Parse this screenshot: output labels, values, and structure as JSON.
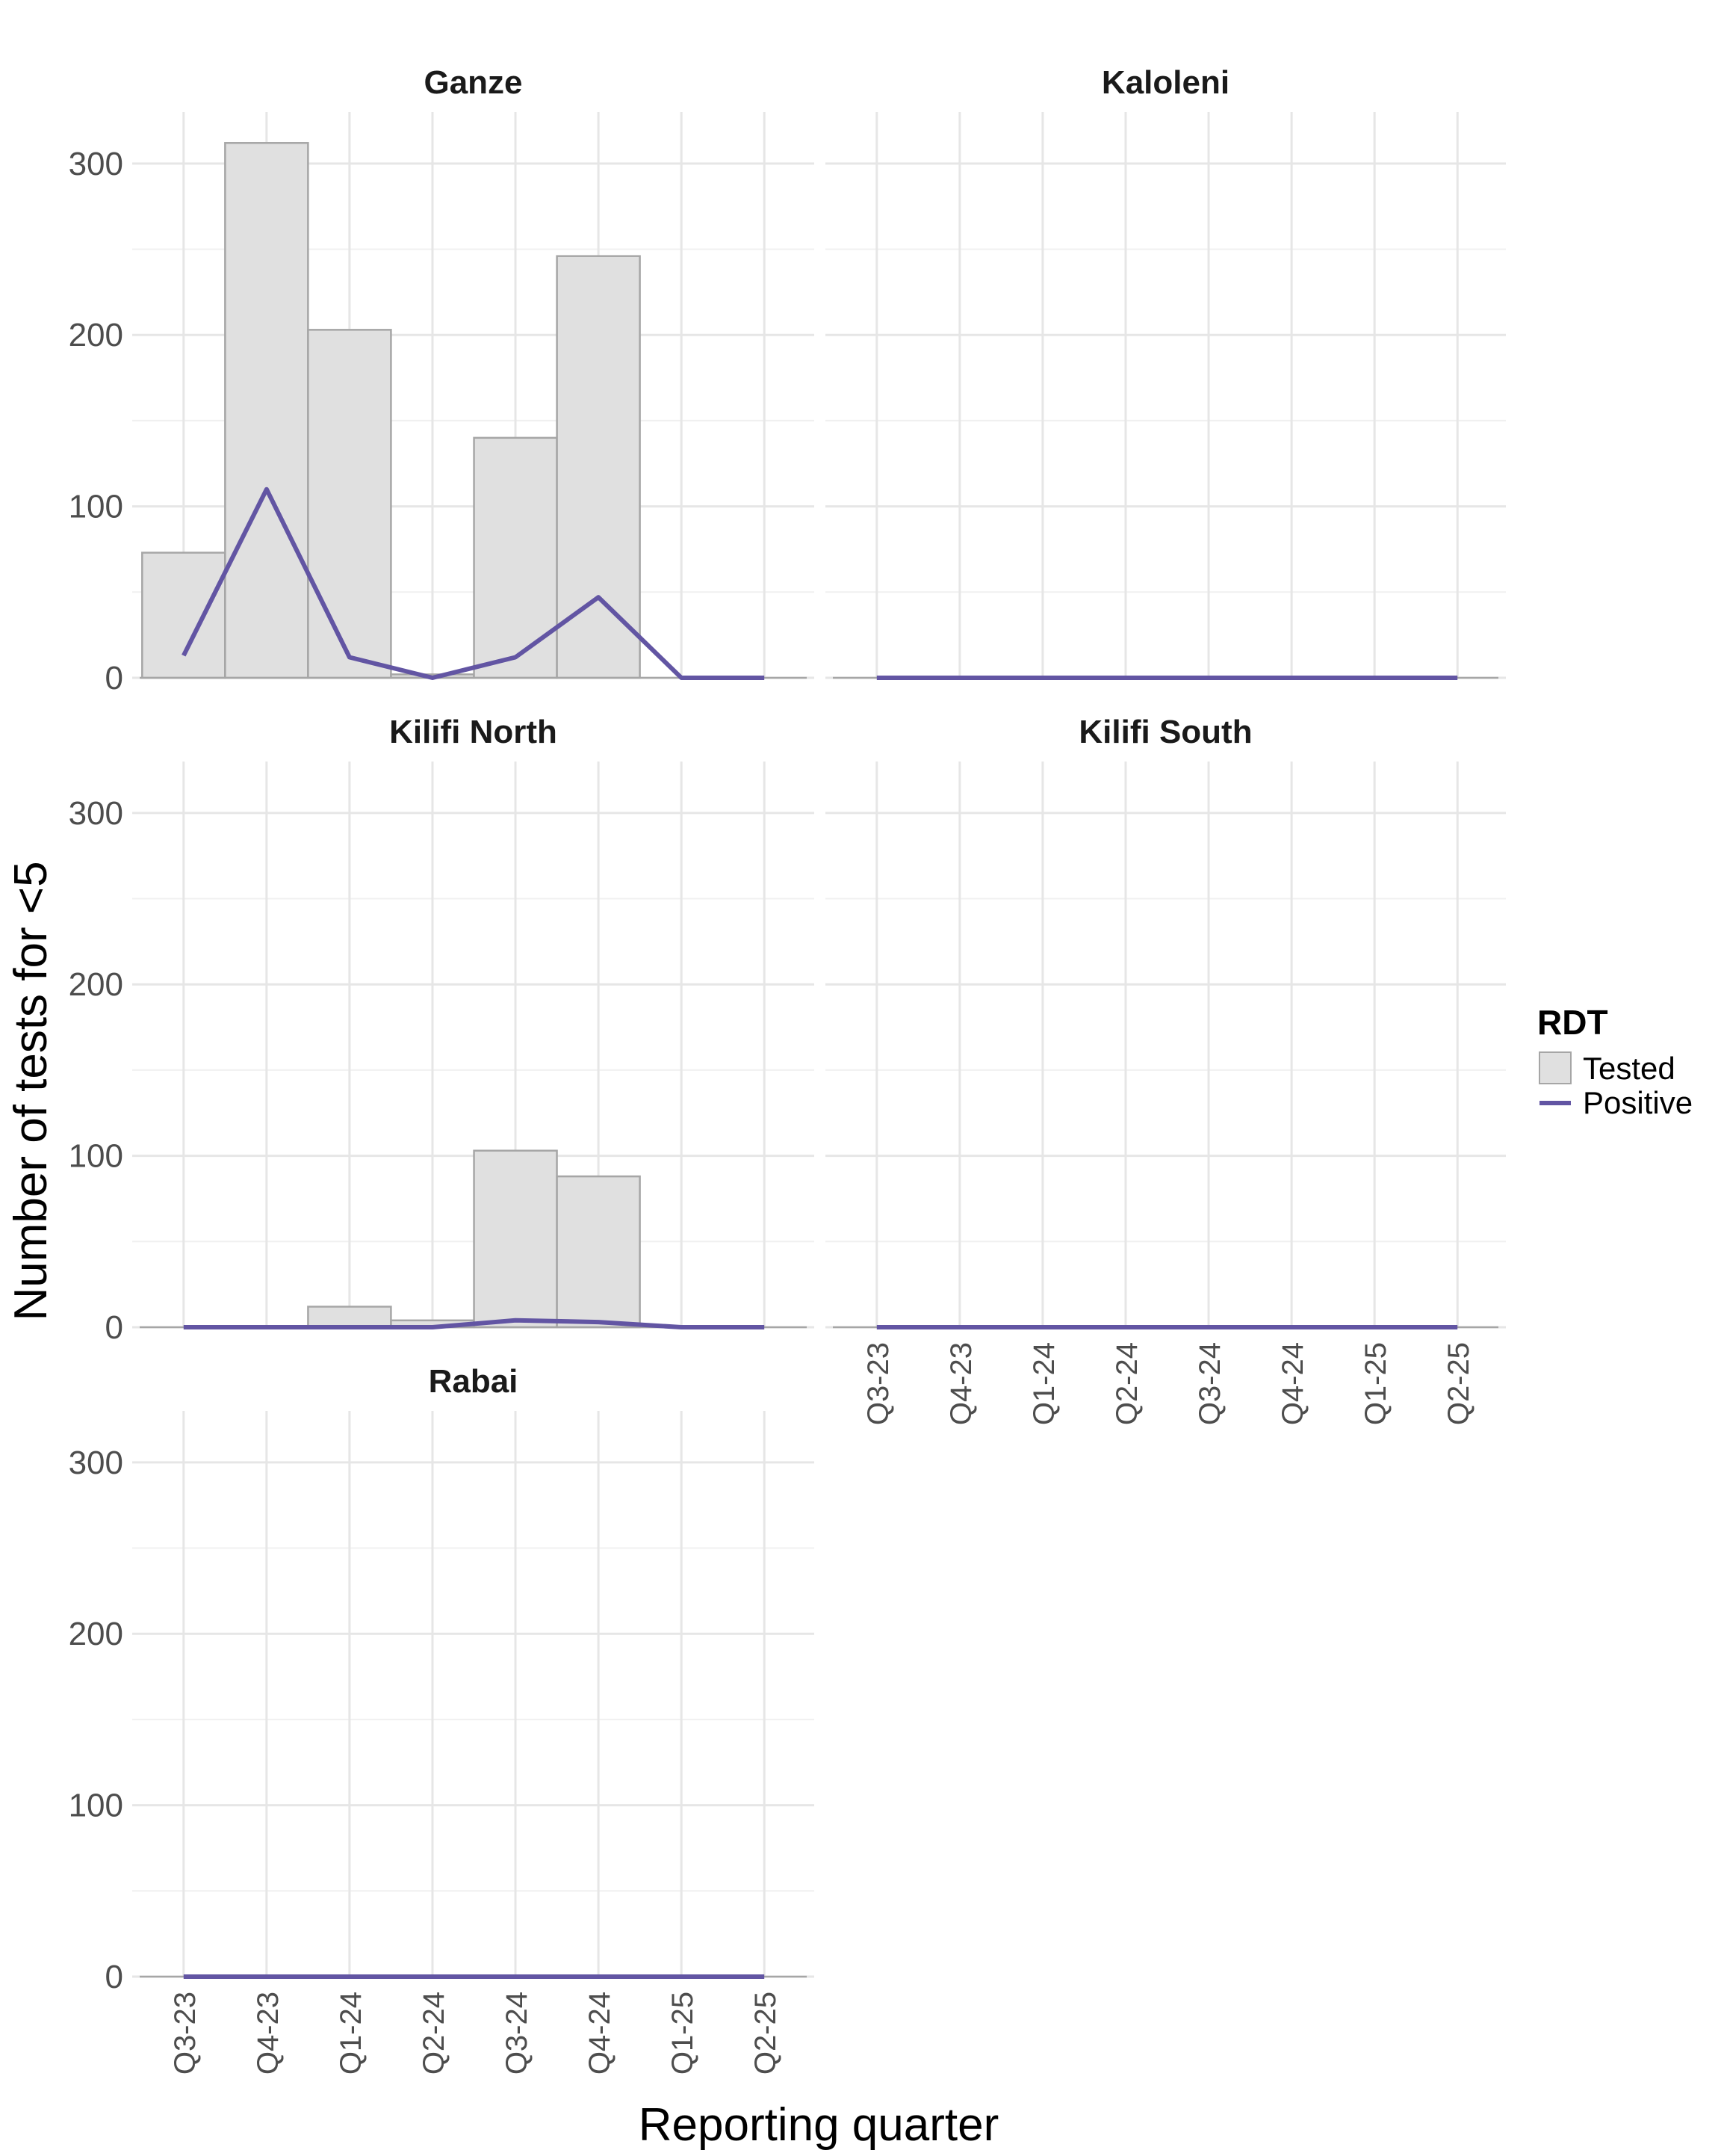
{
  "chart_data": {
    "type": "bar",
    "facet_by": "Sub-county",
    "xlabel": "Reporting quarter",
    "ylabel": "Number of tests for <5",
    "ylim": [
      0,
      330
    ],
    "y_ticks": [
      0,
      100,
      200,
      300
    ],
    "grid": true,
    "legend": {
      "title": "RDT",
      "position": "right",
      "entries": [
        {
          "label": "Tested",
          "kind": "bar"
        },
        {
          "label": "Positive",
          "kind": "line"
        }
      ]
    },
    "colors": {
      "bar_fill": "#e0e0e0",
      "bar_stroke": "#a6a6a6",
      "line": "#6255a3",
      "grid": "#e6e6e6",
      "axis_text": "#4d4d4d",
      "strip_text": "#1a1a1a"
    },
    "categories": [
      "Q3-23",
      "Q4-23",
      "Q1-24",
      "Q2-24",
      "Q3-24",
      "Q4-24",
      "Q1-25",
      "Q2-25"
    ],
    "panels": [
      {
        "title": "Ganze",
        "series": [
          {
            "name": "Tested",
            "type": "bar",
            "values": [
              73,
              312,
              203,
              2,
              140,
              246,
              0,
              0
            ]
          },
          {
            "name": "Positive",
            "type": "line",
            "values": [
              13,
              110,
              12,
              0,
              12,
              47,
              0,
              0
            ]
          }
        ]
      },
      {
        "title": "Kaloleni",
        "series": [
          {
            "name": "Tested",
            "type": "bar",
            "values": [
              0,
              0,
              0,
              0,
              0,
              0,
              0,
              0
            ]
          },
          {
            "name": "Positive",
            "type": "line",
            "values": [
              0,
              0,
              0,
              0,
              0,
              0,
              0,
              0
            ]
          }
        ]
      },
      {
        "title": "Kilifi North",
        "series": [
          {
            "name": "Tested",
            "type": "bar",
            "values": [
              0,
              0,
              12,
              4,
              103,
              88,
              0,
              0
            ]
          },
          {
            "name": "Positive",
            "type": "line",
            "values": [
              0,
              0,
              0,
              0,
              4,
              3,
              0,
              0
            ]
          }
        ]
      },
      {
        "title": "Kilifi South",
        "series": [
          {
            "name": "Tested",
            "type": "bar",
            "values": [
              0,
              0,
              0,
              0,
              0,
              0,
              0,
              0
            ]
          },
          {
            "name": "Positive",
            "type": "line",
            "values": [
              0,
              0,
              0,
              0,
              0,
              0,
              0,
              0
            ]
          }
        ]
      },
      {
        "title": "Rabai",
        "series": [
          {
            "name": "Tested",
            "type": "bar",
            "values": [
              0,
              0,
              0,
              0,
              0,
              0,
              0,
              0
            ]
          },
          {
            "name": "Positive",
            "type": "line",
            "values": [
              0,
              0,
              0,
              0,
              0,
              0,
              0,
              0
            ]
          }
        ]
      }
    ]
  }
}
